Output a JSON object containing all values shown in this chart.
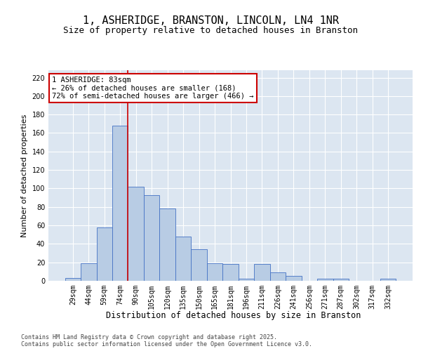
{
  "title": "1, ASHERIDGE, BRANSTON, LINCOLN, LN4 1NR",
  "subtitle": "Size of property relative to detached houses in Branston",
  "xlabel": "Distribution of detached houses by size in Branston",
  "ylabel": "Number of detached properties",
  "categories": [
    "29sqm",
    "44sqm",
    "59sqm",
    "74sqm",
    "90sqm",
    "105sqm",
    "120sqm",
    "135sqm",
    "150sqm",
    "165sqm",
    "181sqm",
    "196sqm",
    "211sqm",
    "226sqm",
    "241sqm",
    "256sqm",
    "271sqm",
    "287sqm",
    "302sqm",
    "317sqm",
    "332sqm"
  ],
  "values": [
    3,
    19,
    58,
    168,
    102,
    93,
    78,
    48,
    34,
    19,
    18,
    2,
    18,
    9,
    5,
    0,
    2,
    2,
    0,
    0,
    2
  ],
  "bar_color": "#b8cce4",
  "bar_edge_color": "#4472c4",
  "background_color": "#dce6f1",
  "grid_color": "#ffffff",
  "annotation_text": "1 ASHERIDGE: 83sqm\n← 26% of detached houses are smaller (168)\n72% of semi-detached houses are larger (466) →",
  "annotation_box_facecolor": "#ffffff",
  "annotation_box_edgecolor": "#cc0000",
  "redline_bar_index": 3,
  "redline_color": "#cc0000",
  "ylim": [
    0,
    228
  ],
  "yticks": [
    0,
    20,
    40,
    60,
    80,
    100,
    120,
    140,
    160,
    180,
    200,
    220
  ],
  "footer": "Contains HM Land Registry data © Crown copyright and database right 2025.\nContains public sector information licensed under the Open Government Licence v3.0.",
  "title_fontsize": 11,
  "subtitle_fontsize": 9,
  "xlabel_fontsize": 8.5,
  "ylabel_fontsize": 8,
  "tick_fontsize": 7,
  "annotation_fontsize": 7.5,
  "footer_fontsize": 6
}
